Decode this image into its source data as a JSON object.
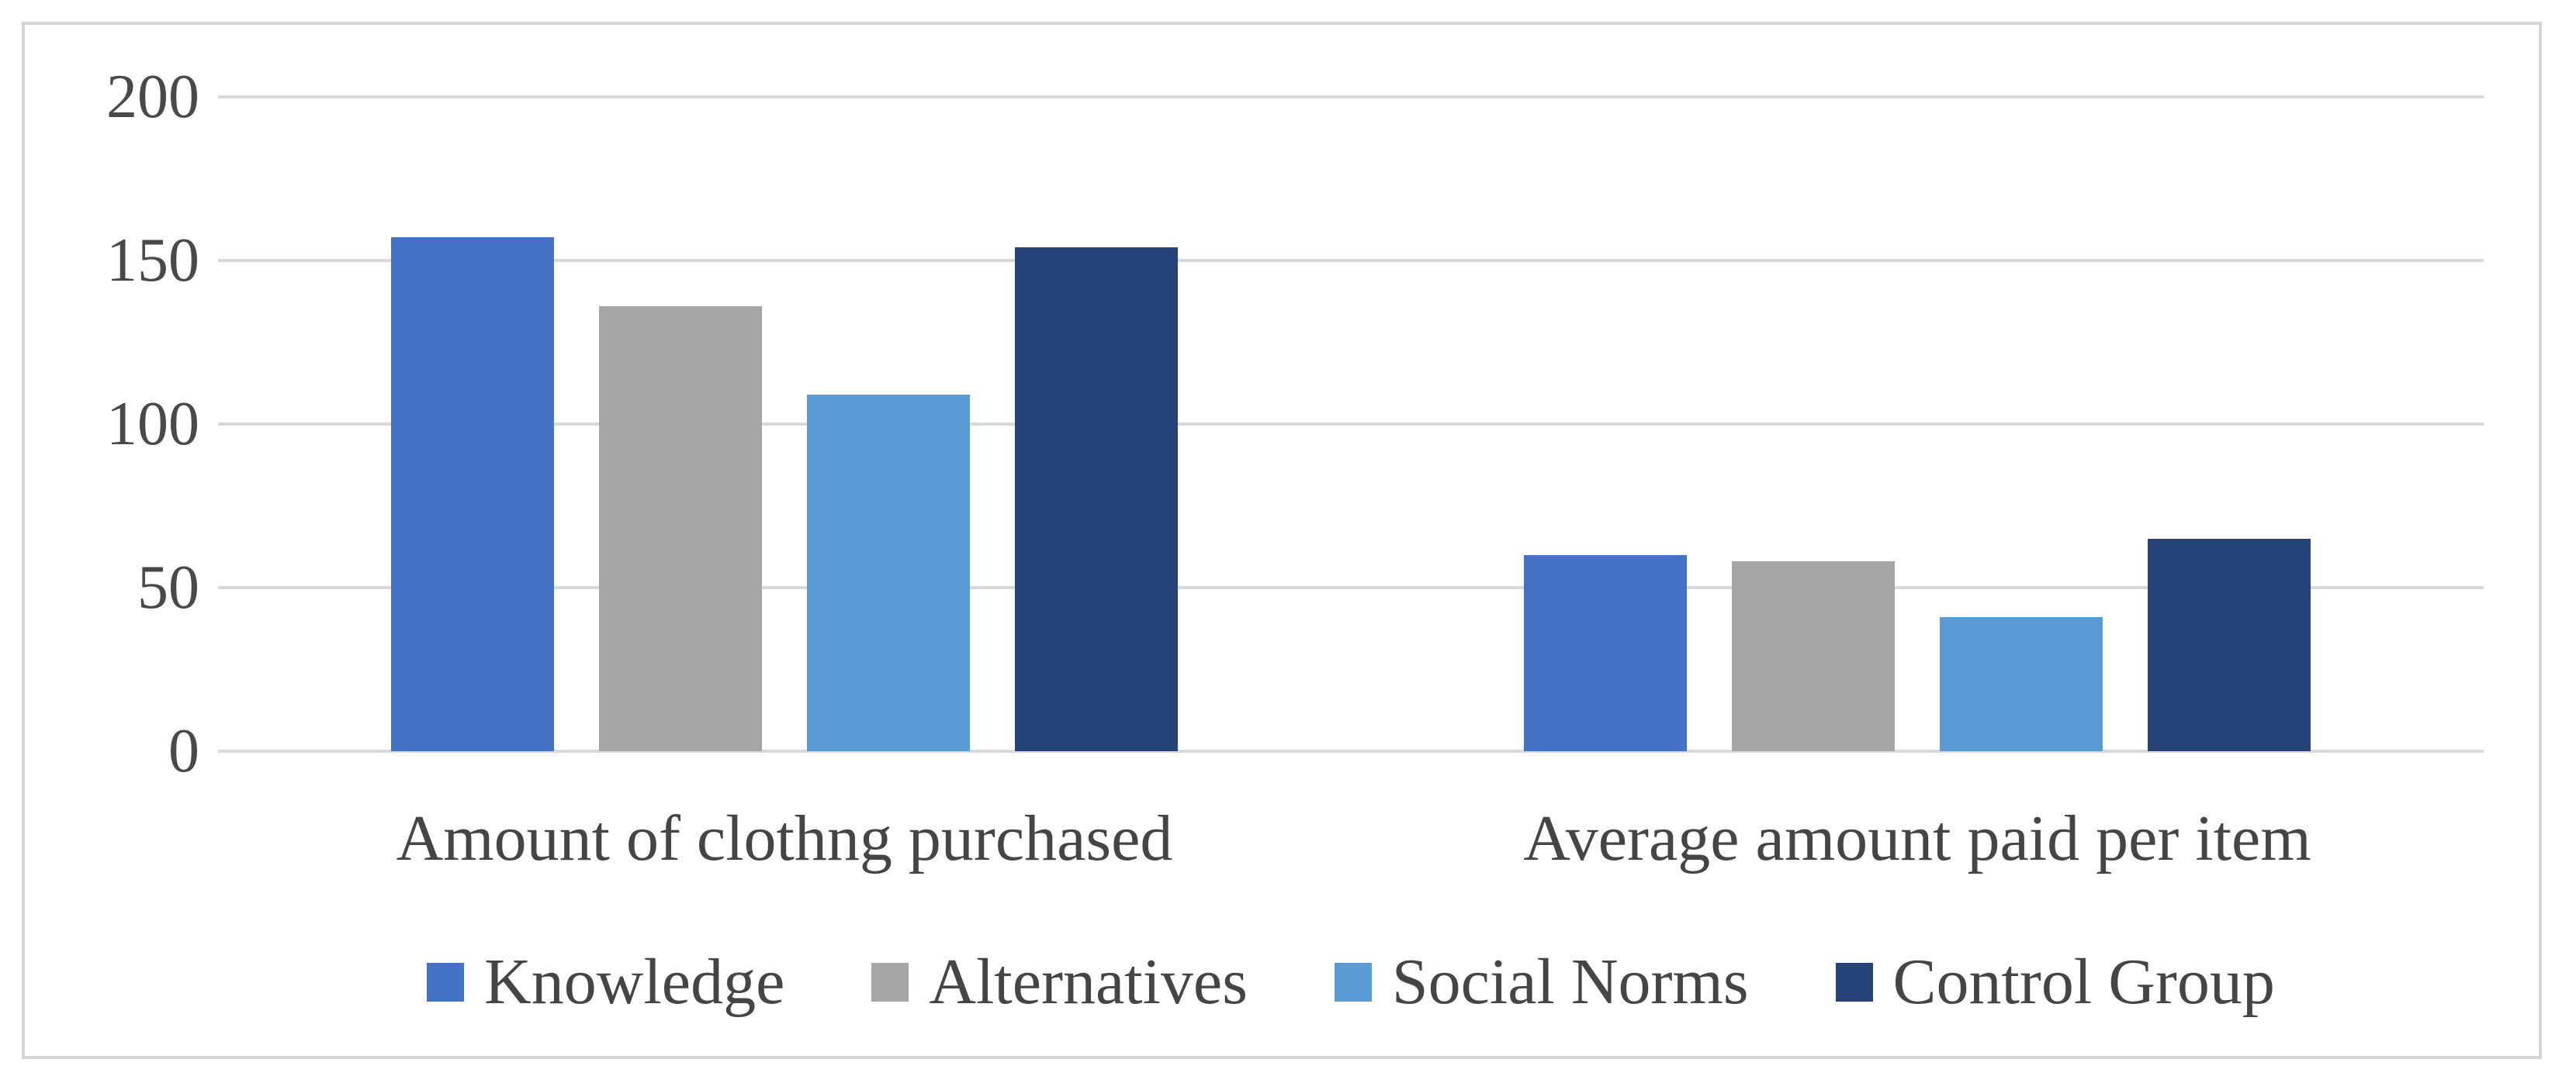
{
  "chart_data": {
    "type": "bar",
    "title": "",
    "xlabel": "",
    "ylabel": "",
    "categories": [
      "Amount of clothng purchased",
      "Average amount paid per item"
    ],
    "series": [
      {
        "name": "Knowledge",
        "color": "#4472C4",
        "values": [
          157,
          60
        ]
      },
      {
        "name": "Alternatives",
        "color": "#A5A5A5",
        "values": [
          136,
          58
        ]
      },
      {
        "name": "Social Norms",
        "color": "#5B9BD5",
        "values": [
          109,
          41
        ]
      },
      {
        "name": "Control Group",
        "color": "#264478",
        "values": [
          154,
          65
        ]
      }
    ],
    "y_axis": {
      "min": 0,
      "max": 200,
      "ticks": [
        200,
        150,
        100,
        50,
        0
      ]
    },
    "grid": true,
    "legend_position": "bottom",
    "styles": {
      "gridline_color": "#d9d9d9",
      "border_color": "#d5d5d5",
      "text_color": "#454545",
      "tick_text_color": "#494949",
      "background": "#ffffff"
    }
  }
}
